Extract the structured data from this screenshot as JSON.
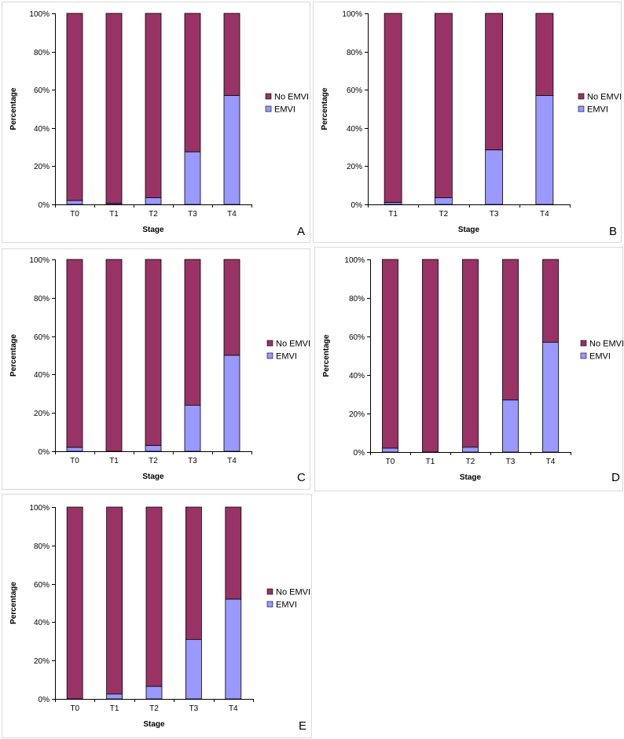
{
  "colors": {
    "emvi": "#9999ff",
    "no_emvi": "#993366",
    "frame": "#d9d9d9",
    "bar_stroke": "#000000"
  },
  "chart_data": [
    {
      "type": "bar",
      "stacked": true,
      "percent": true,
      "panel": "A",
      "categories": [
        "T0",
        "T1",
        "T2",
        "T3",
        "T4"
      ],
      "series": [
        {
          "name": "EMVI",
          "values": [
            2,
            0.5,
            3.5,
            27.5,
            57
          ]
        },
        {
          "name": "No EMVI",
          "values": [
            98,
            99.5,
            96.5,
            72.5,
            43
          ]
        }
      ],
      "xlabel": "Stage",
      "ylabel": "Percentage",
      "ylim": [
        0,
        100
      ],
      "yticks": [
        "0%",
        "20%",
        "40%",
        "60%",
        "80%",
        "100%"
      ],
      "legend": [
        "No EMVI",
        "EMVI"
      ],
      "legend_position": "right"
    },
    {
      "type": "bar",
      "stacked": true,
      "percent": true,
      "panel": "B",
      "categories": [
        "T1",
        "T2",
        "T3",
        "T4"
      ],
      "series": [
        {
          "name": "EMVI",
          "values": [
            1,
            3.5,
            28.5,
            57
          ]
        },
        {
          "name": "No EMVI",
          "values": [
            99,
            96.5,
            71.5,
            43
          ]
        }
      ],
      "xlabel": "Stage",
      "ylabel": "Percentage",
      "ylim": [
        0,
        100
      ],
      "yticks": [
        "0%",
        "20%",
        "40%",
        "60%",
        "80%",
        "100%"
      ],
      "legend": [
        "No EMVI",
        "EMVI"
      ],
      "legend_position": "right"
    },
    {
      "type": "bar",
      "stacked": true,
      "percent": true,
      "panel": "C",
      "categories": [
        "T0",
        "T1",
        "T2",
        "T3",
        "T4"
      ],
      "series": [
        {
          "name": "EMVI",
          "values": [
            2,
            0,
            3,
            24,
            50
          ]
        },
        {
          "name": "No EMVI",
          "values": [
            98,
            100,
            97,
            76,
            50
          ]
        }
      ],
      "xlabel": "Stage",
      "ylabel": "Percentage",
      "ylim": [
        0,
        100
      ],
      "yticks": [
        "0%",
        "20%",
        "40%",
        "60%",
        "80%",
        "100%"
      ],
      "legend": [
        "No EMVI",
        "EMVI"
      ],
      "legend_position": "right"
    },
    {
      "type": "bar",
      "stacked": true,
      "percent": true,
      "panel": "D",
      "categories": [
        "T0",
        "T1",
        "T2",
        "T3",
        "T4"
      ],
      "series": [
        {
          "name": "EMVI",
          "values": [
            2,
            0,
            2.5,
            27,
            57
          ]
        },
        {
          "name": "No EMVI",
          "values": [
            98,
            100,
            97.5,
            73,
            43
          ]
        }
      ],
      "xlabel": "Stage",
      "ylabel": "Percentage",
      "ylim": [
        0,
        100
      ],
      "yticks": [
        "0%",
        "20%",
        "40%",
        "60%",
        "80%",
        "100%"
      ],
      "legend": [
        "No EMVI",
        "EMVI"
      ],
      "legend_position": "right"
    },
    {
      "type": "bar",
      "stacked": true,
      "percent": true,
      "panel": "E",
      "categories": [
        "T0",
        "T1",
        "T2",
        "T3",
        "T4"
      ],
      "series": [
        {
          "name": "EMVI",
          "values": [
            0,
            2.5,
            6.5,
            31,
            52
          ]
        },
        {
          "name": "No EMVI",
          "values": [
            100,
            97.5,
            93.5,
            69,
            48
          ]
        }
      ],
      "xlabel": "Stage",
      "ylabel": "Percentage",
      "ylim": [
        0,
        100
      ],
      "yticks": [
        "0%",
        "20%",
        "40%",
        "60%",
        "80%",
        "100%"
      ],
      "legend": [
        "No EMVI",
        "EMVI"
      ],
      "legend_position": "right"
    }
  ]
}
